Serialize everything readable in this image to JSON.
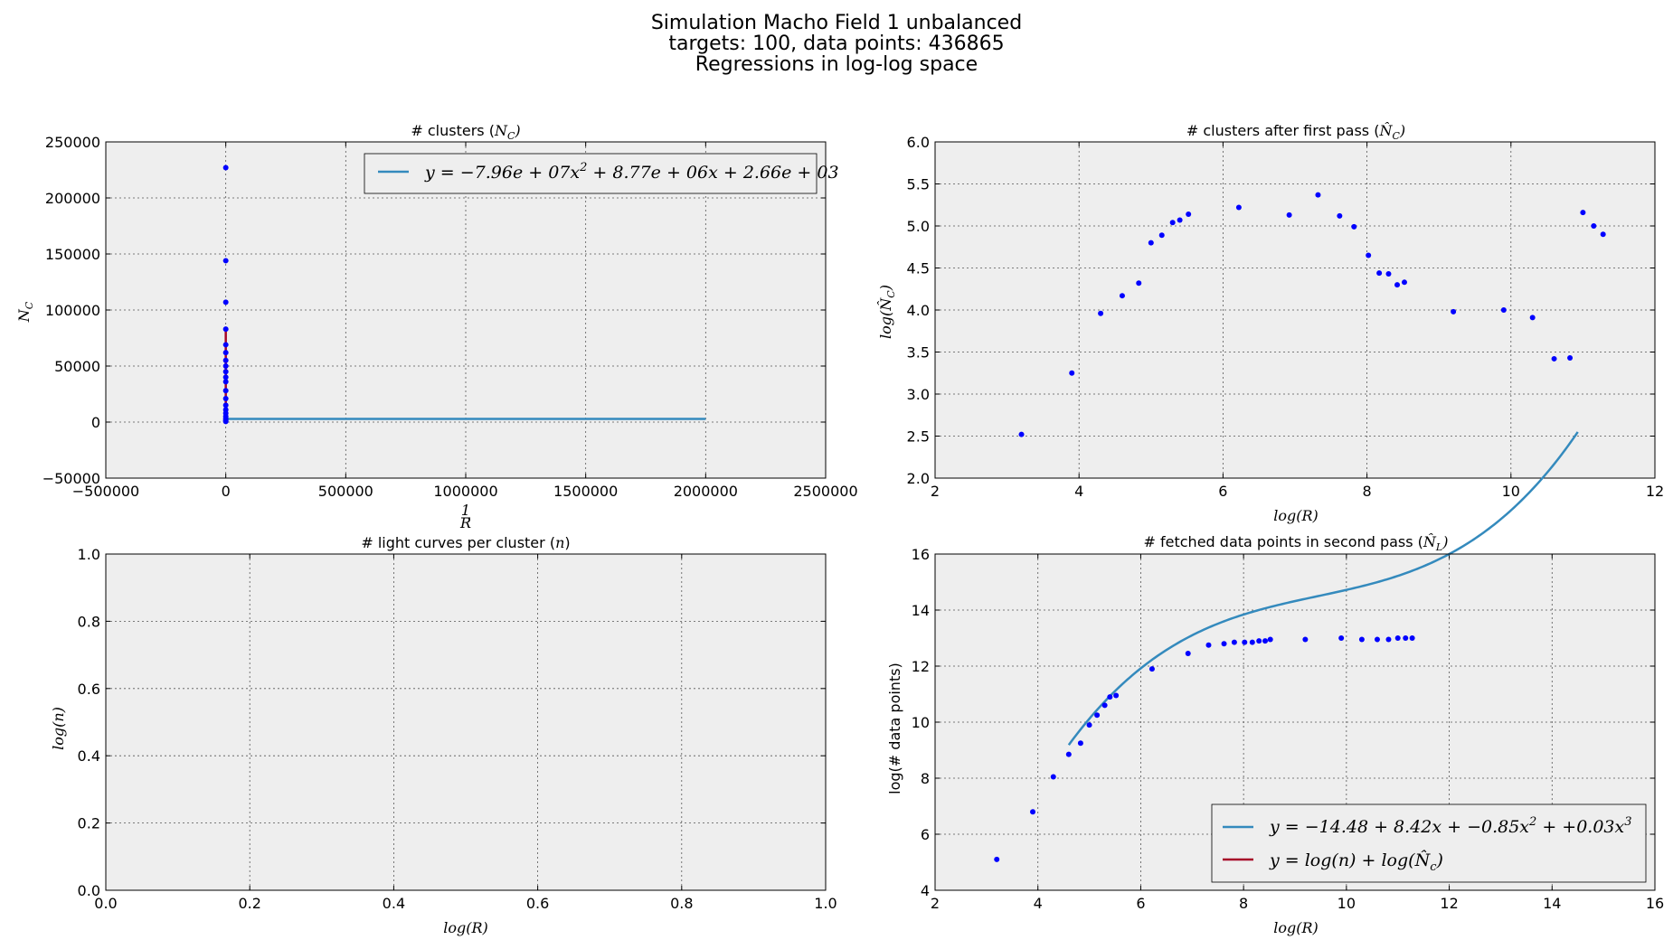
{
  "figure": {
    "suptitle": [
      "Simulation Macho Field 1 unbalanced",
      "targets: 100,   data points: 436865",
      "Regressions in log-log space"
    ],
    "colors": {
      "points": "#0000ff",
      "fit": "#348abd",
      "fit2": "#a60628",
      "face": "#eeeeee",
      "grid": "#555555"
    }
  },
  "chart_data": [
    {
      "type": "scatter",
      "title": "# clusters (N_C)",
      "xlabel": "1/R",
      "ylabel": "N_C",
      "xlim": [
        -500000,
        2500000
      ],
      "ylim": [
        -50000,
        250000
      ],
      "xticks": [
        -500000,
        0,
        500000,
        1000000,
        1500000,
        2000000,
        2500000
      ],
      "xtick_labels": [
        "−500000",
        "0",
        "500000",
        "1000000",
        "1500000",
        "2000000",
        "2500000"
      ],
      "yticks": [
        -50000,
        0,
        50000,
        100000,
        150000,
        200000,
        250000
      ],
      "ytick_labels": [
        "−50000",
        "0",
        "50000",
        "100000",
        "150000",
        "200000",
        "250000"
      ],
      "grid": true,
      "legend_position": "top-right",
      "series": [
        {
          "name": "y = −7.96e+07x² + 8.77e+06x + 2.66e+03",
          "kind": "line",
          "x": [
            0,
            2000000
          ],
          "y": [
            2800,
            2800
          ]
        },
        {
          "kind": "line",
          "x": [
            0,
            0
          ],
          "y": [
            0,
            83000
          ]
        },
        {
          "kind": "points",
          "x": [
            0,
            0,
            0,
            0,
            0,
            0,
            0,
            0,
            0,
            0,
            0,
            0,
            0,
            0,
            0,
            0,
            0,
            0,
            0,
            0
          ],
          "y": [
            227000,
            144000,
            107000,
            83000,
            69000,
            62000,
            55000,
            50000,
            45000,
            40000,
            36000,
            28000,
            21000,
            15000,
            11000,
            8000,
            5000,
            3000,
            1500,
            500
          ]
        }
      ]
    },
    {
      "type": "scatter",
      "title": "# clusters after first pass (N̂_C)",
      "xlabel": "log(R)",
      "ylabel": "log(N̂_C)",
      "xlim": [
        2,
        12
      ],
      "ylim": [
        2.0,
        6.0
      ],
      "xticks": [
        2,
        4,
        6,
        8,
        10,
        12
      ],
      "xtick_labels": [
        "2",
        "4",
        "6",
        "8",
        "10",
        "12"
      ],
      "yticks": [
        2.0,
        2.5,
        3.0,
        3.5,
        4.0,
        4.5,
        5.0,
        5.5,
        6.0
      ],
      "ytick_labels": [
        "2.0",
        "2.5",
        "3.0",
        "3.5",
        "4.0",
        "4.5",
        "5.0",
        "5.5",
        "6.0"
      ],
      "grid": true,
      "series": [
        {
          "kind": "points",
          "x": [
            3.2,
            3.9,
            4.3,
            4.6,
            4.83,
            5.0,
            5.15,
            5.3,
            5.4,
            5.52,
            6.22,
            6.92,
            7.32,
            7.62,
            7.82,
            8.02,
            8.17,
            8.3,
            8.42,
            8.52,
            9.2,
            9.9,
            10.3,
            10.6,
            10.82,
            11.0,
            11.15,
            11.28
          ],
          "y": [
            2.52,
            3.25,
            3.96,
            4.17,
            4.32,
            4.8,
            4.89,
            5.04,
            5.07,
            5.14,
            5.22,
            5.13,
            5.37,
            5.12,
            4.99,
            4.65,
            4.44,
            4.43,
            4.3,
            4.33,
            3.98,
            4.0,
            3.91,
            3.42,
            3.43,
            5.16,
            5.0,
            4.9
          ]
        }
      ]
    },
    {
      "type": "scatter",
      "title": "# light curves per cluster (n)",
      "xlabel": "log(R)",
      "ylabel": "log(n)",
      "xlim": [
        0.0,
        1.0
      ],
      "ylim": [
        0.0,
        1.0
      ],
      "xticks": [
        0.0,
        0.2,
        0.4,
        0.6,
        0.8,
        1.0
      ],
      "xtick_labels": [
        "0.0",
        "0.2",
        "0.4",
        "0.6",
        "0.8",
        "1.0"
      ],
      "yticks": [
        0.0,
        0.2,
        0.4,
        0.6,
        0.8,
        1.0
      ],
      "ytick_labels": [
        "0.0",
        "0.2",
        "0.4",
        "0.6",
        "0.8",
        "1.0"
      ],
      "grid": true,
      "series": []
    },
    {
      "type": "scatter",
      "title": "# fetched data points in second pass (N̂_L)",
      "xlabel": "log(R)",
      "ylabel": "log(# data points)",
      "xlim": [
        2,
        16
      ],
      "ylim": [
        4,
        16
      ],
      "xticks": [
        2,
        4,
        6,
        8,
        10,
        12,
        14,
        16
      ],
      "xtick_labels": [
        "2",
        "4",
        "6",
        "8",
        "10",
        "12",
        "14",
        "16"
      ],
      "yticks": [
        4,
        6,
        8,
        10,
        12,
        14,
        16
      ],
      "ytick_labels": [
        "4",
        "6",
        "8",
        "10",
        "12",
        "14",
        "16"
      ],
      "grid": true,
      "legend_position": "bottom-right",
      "series": [
        {
          "name": "y = −14.48 + 8.42x + −0.85x² + +0.03x³",
          "kind": "poly",
          "coeffs": [
            -14.48,
            8.42,
            -0.85,
            0.03
          ],
          "domain": [
            4.6,
            14.5
          ]
        },
        {
          "name": "y = log(n) + log(N̂_c)",
          "kind": "line",
          "x": [],
          "y": []
        },
        {
          "kind": "points",
          "x": [
            3.2,
            3.9,
            4.3,
            4.6,
            4.83,
            5.0,
            5.15,
            5.3,
            5.4,
            5.52,
            6.22,
            6.92,
            7.32,
            7.62,
            7.82,
            8.02,
            8.17,
            8.3,
            8.42,
            8.52,
            9.2,
            9.9,
            10.3,
            10.6,
            10.82,
            11.0,
            11.15,
            11.28
          ],
          "y": [
            5.1,
            6.8,
            8.05,
            8.85,
            9.25,
            9.9,
            10.25,
            10.6,
            10.9,
            10.95,
            11.9,
            12.45,
            12.75,
            12.8,
            12.85,
            12.85,
            12.85,
            12.9,
            12.9,
            12.95,
            12.95,
            13.0,
            12.95,
            12.95,
            12.95,
            13.0,
            13.0,
            13.0
          ]
        }
      ]
    }
  ]
}
